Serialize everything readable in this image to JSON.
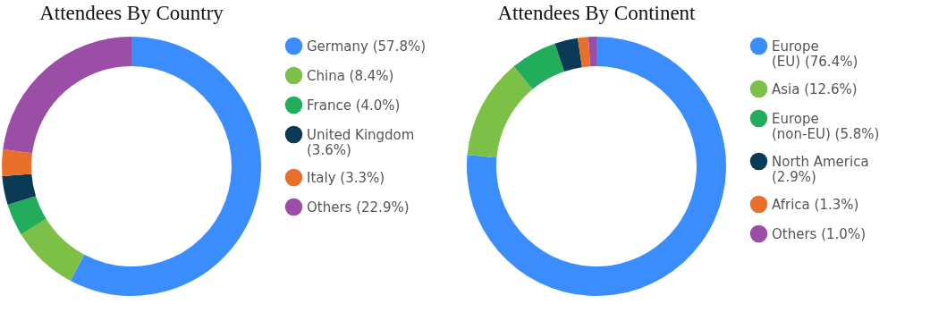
{
  "chart_data": [
    {
      "type": "donut",
      "title": "Attendees By Country",
      "categories": [
        "Germany (57.8%)",
        "China (8.4%)",
        "France (4.0%)",
        "United Kingdom (3.6%)",
        "Italy (3.3%)",
        "Others (22.9%)"
      ],
      "values": [
        57.8,
        8.4,
        4.0,
        3.6,
        3.3,
        22.9
      ],
      "colors": [
        "#3b8cfc",
        "#7cc047",
        "#22ad5c",
        "#0b3a57",
        "#e9702a",
        "#9b4ea6"
      ],
      "legend": "right"
    },
    {
      "type": "donut",
      "title": "Attendees By Continent",
      "categories": [
        "Europe (EU) (76.4%)",
        "Asia (12.6%)",
        "Europe (non-EU) (5.8%)",
        "North America (2.9%)",
        "Africa (1.3%)",
        "Others (1.0%)"
      ],
      "values": [
        76.4,
        12.6,
        5.8,
        2.9,
        1.3,
        1.0
      ],
      "colors": [
        "#3b8cfc",
        "#7cc047",
        "#22ad5c",
        "#0b3a57",
        "#e9702a",
        "#9b4ea6"
      ],
      "legend": "right"
    }
  ]
}
